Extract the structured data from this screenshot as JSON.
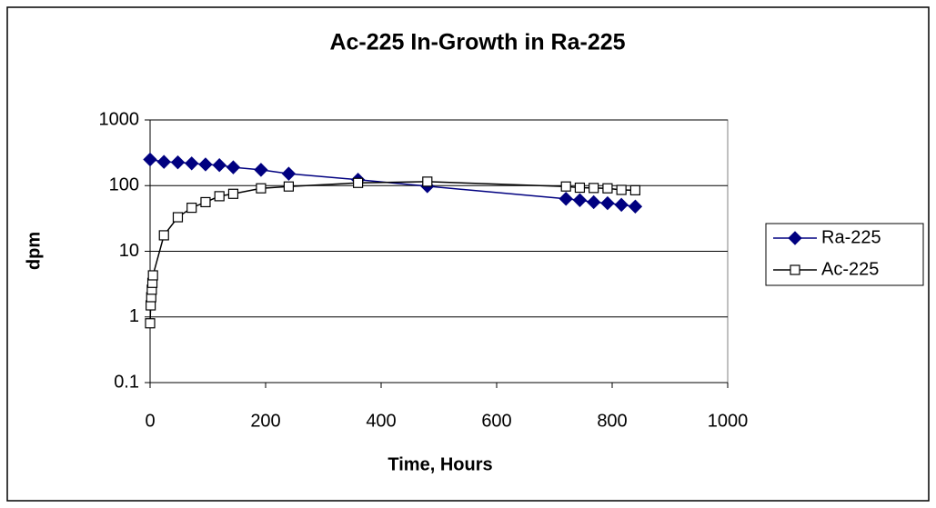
{
  "chart_data": {
    "type": "scatter-line",
    "title": "Ac-225 In-Growth in Ra-225",
    "x_label": "Time, Hours",
    "y_label": "dpm",
    "xlim": [
      0,
      1000
    ],
    "xticks": [
      0,
      200,
      400,
      600,
      800,
      1000
    ],
    "ylim": [
      0.1,
      1000
    ],
    "yticks": [
      0.1,
      1,
      10,
      100,
      1000
    ],
    "y_scale": "log",
    "grid": true,
    "legend": "right",
    "series": [
      {
        "name": "Ra-225",
        "color": "#000080",
        "marker": "diamond",
        "x": [
          0,
          24,
          48,
          72,
          96,
          120,
          144,
          192,
          240,
          360,
          480,
          720,
          744,
          768,
          792,
          816,
          840
        ],
        "values": [
          250,
          230,
          226,
          218,
          210,
          205,
          190,
          174,
          152,
          123,
          98,
          63,
          60,
          56,
          54,
          51,
          48
        ]
      },
      {
        "name": "Ac-225",
        "color": "#000000",
        "marker": "square",
        "x": [
          0,
          1,
          2,
          3,
          4,
          5,
          24,
          48,
          72,
          96,
          120,
          144,
          192,
          240,
          360,
          480,
          720,
          744,
          768,
          792,
          816,
          840
        ],
        "values": [
          0.8,
          1.5,
          2,
          2.6,
          3.3,
          4.3,
          17.5,
          33,
          46,
          56,
          69,
          75,
          91,
          97,
          110,
          115,
          97,
          93,
          92,
          91,
          86,
          85
        ]
      }
    ]
  }
}
